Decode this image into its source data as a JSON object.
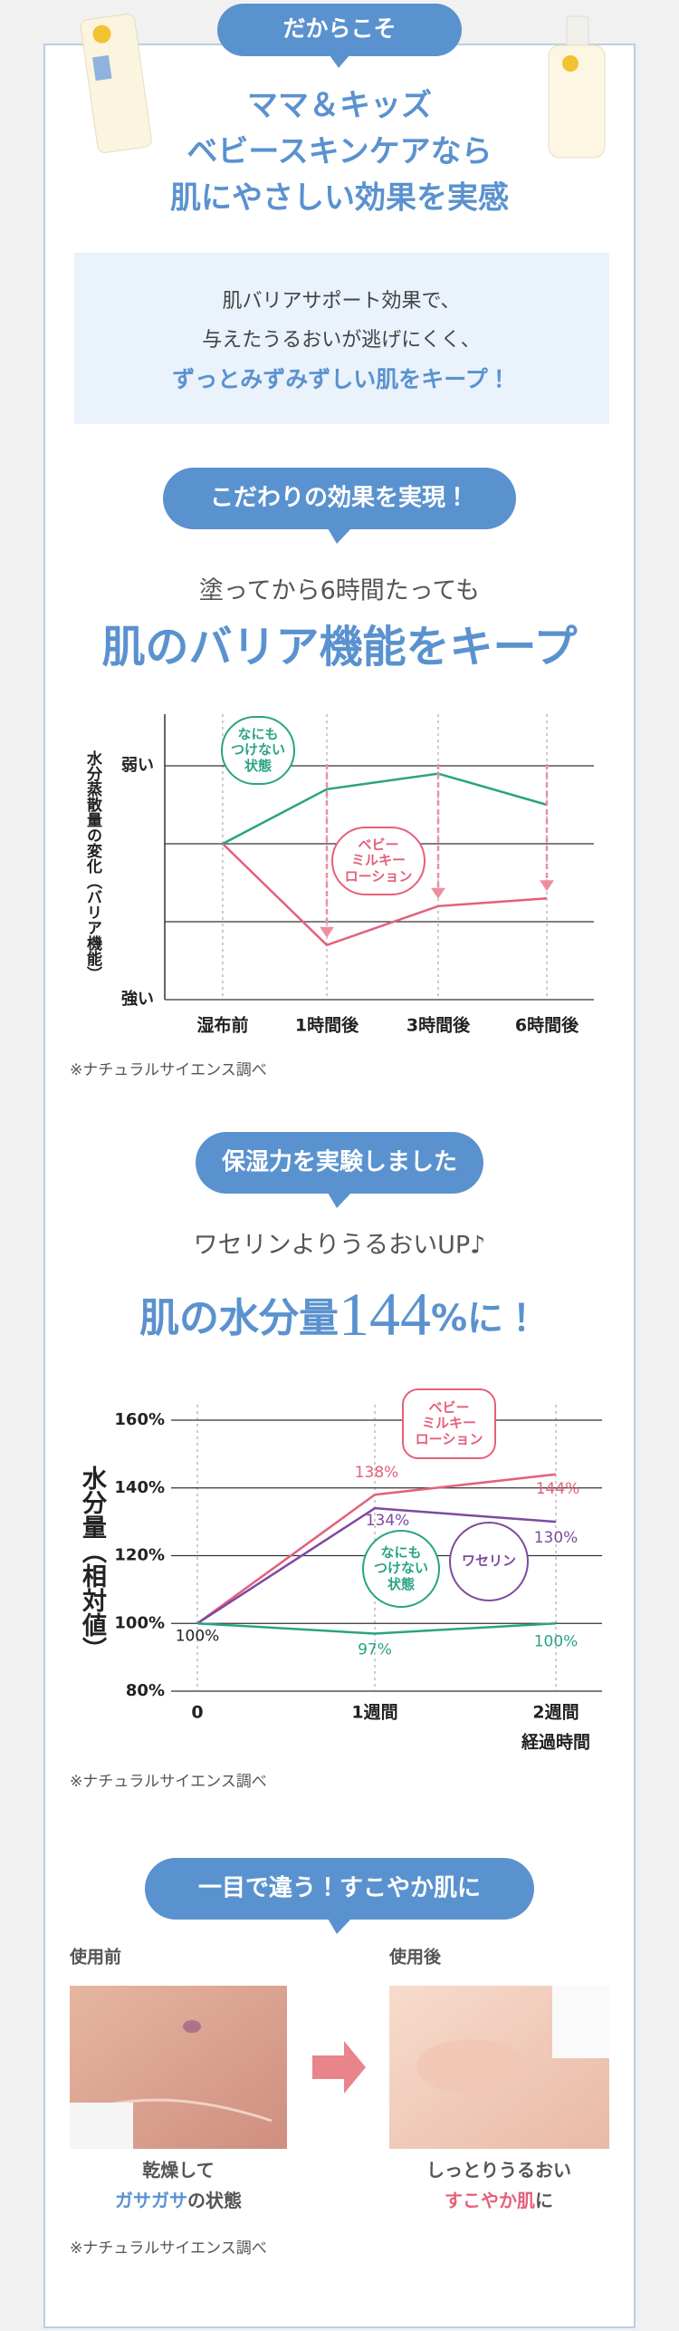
{
  "header": {
    "badge": "だからこそ",
    "title_lines": [
      "ママ＆キッズ",
      "ベビースキンケアなら",
      "肌にやさしい効果を実感"
    ]
  },
  "intro": {
    "lines": [
      "肌バリアサポート効果で、",
      "与えたうるおいが逃げにくく、",
      "ずっとみずみずしい肌をキープ！"
    ]
  },
  "barrier": {
    "badge": "こだわりの効果を実現！",
    "subtitle": "塗ってから6時間たっても",
    "title": "肌のバリア機能をキープ",
    "note": "※ナチュラルサイエンス調べ"
  },
  "moisture": {
    "badge": "保湿力を実験しました",
    "subtitle": "ワセリンよりうるおいUP♪",
    "title_parts": [
      "肌の水分量",
      "144",
      "%に！"
    ],
    "note": "※ナチュラルサイエンス調べ"
  },
  "comparison": {
    "badge": "一目で違う！すこやか肌に",
    "before": {
      "label": "使用前",
      "caption": [
        "乾燥して",
        "ガサガサ",
        "の状態"
      ]
    },
    "after": {
      "label": "使用後",
      "caption": [
        "しっとりうるおい",
        "すこやか肌",
        "に"
      ]
    },
    "note": "※ナチュラルサイエンス調べ"
  },
  "chart_data": [
    {
      "type": "line",
      "y_label": "水分蒸散量の変化（バリア機能）",
      "categories": [
        "湿布前",
        "1時間後",
        "3時間後",
        "6時間後"
      ],
      "series": [
        {
          "name": "なにも\nつけない\n状態",
          "color": "#2aa384",
          "values": [
            2,
            2.7,
            2.9,
            2.5
          ]
        },
        {
          "name": "ベビー\nミルキー\nローション",
          "color": "#e4607b",
          "values": [
            2,
            0.7,
            1.2,
            1.3
          ]
        }
      ],
      "ylim": [
        0,
        3
      ],
      "yticks": [
        {
          "value": 0,
          "label": "強い"
        },
        {
          "value": 1,
          "label": null
        },
        {
          "value": 2,
          "label": null
        },
        {
          "value": 3,
          "label": "弱い"
        }
      ],
      "grid": true
    },
    {
      "type": "line",
      "y_label": "水分量（相対値）",
      "x_label": "経過時間",
      "categories": [
        "0",
        "1週間",
        "2週間"
      ],
      "series": [
        {
          "name": "ベビー\nミルキー\nローション",
          "color": "#e4607b",
          "values": [
            100,
            138,
            144
          ],
          "value_labels": [
            "100%",
            "138%",
            "144%"
          ]
        },
        {
          "name": "ワセリン",
          "color": "#7d4aa0",
          "values": [
            100,
            134,
            130
          ],
          "value_labels": [
            null,
            "134%",
            "130%"
          ]
        },
        {
          "name": "なにも\nつけない\n状態",
          "color": "#2aa384",
          "values": [
            100,
            97,
            100
          ],
          "value_labels": [
            null,
            "97%",
            "100%"
          ]
        }
      ],
      "ylim": [
        80,
        160
      ],
      "yticks": [
        {
          "value": 80,
          "label": "80%"
        },
        {
          "value": 100,
          "label": "100%"
        },
        {
          "value": 120,
          "label": "120%"
        },
        {
          "value": 140,
          "label": "140%"
        },
        {
          "value": 160,
          "label": "160%"
        }
      ],
      "grid": true
    }
  ]
}
